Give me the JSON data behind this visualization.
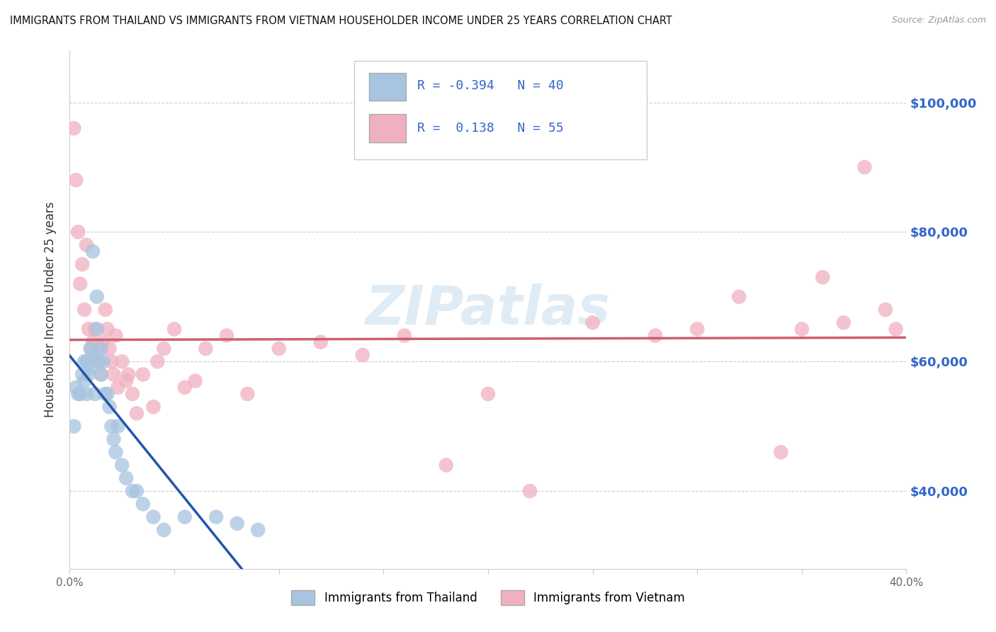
{
  "title": "IMMIGRANTS FROM THAILAND VS IMMIGRANTS FROM VIETNAM HOUSEHOLDER INCOME UNDER 25 YEARS CORRELATION CHART",
  "source": "Source: ZipAtlas.com",
  "ylabel": "Householder Income Under 25 years",
  "xlim": [
    0.0,
    0.4
  ],
  "ylim": [
    28000,
    108000
  ],
  "yticks": [
    40000,
    60000,
    80000,
    100000
  ],
  "ytick_labels": [
    "$40,000",
    "$60,000",
    "$80,000",
    "$100,000"
  ],
  "xticks": [
    0.0,
    0.05,
    0.1,
    0.15,
    0.2,
    0.25,
    0.3,
    0.35,
    0.4
  ],
  "xtick_labels": [
    "0.0%",
    "",
    "",
    "",
    "",
    "",
    "",
    "",
    "40.0%"
  ],
  "thailand_color": "#a8c4e0",
  "vietnam_color": "#f0b0c0",
  "thailand_line_color": "#2255aa",
  "vietnam_line_color": "#cc6070",
  "label_color": "#3366cc",
  "thailand_R": -0.394,
  "thailand_N": 40,
  "vietnam_R": 0.138,
  "vietnam_N": 55,
  "watermark": "ZIPatlas",
  "thailand_x": [
    0.002,
    0.003,
    0.004,
    0.005,
    0.006,
    0.007,
    0.007,
    0.008,
    0.008,
    0.009,
    0.009,
    0.01,
    0.01,
    0.011,
    0.011,
    0.012,
    0.013,
    0.013,
    0.014,
    0.015,
    0.015,
    0.016,
    0.017,
    0.018,
    0.019,
    0.02,
    0.021,
    0.022,
    0.023,
    0.025,
    0.027,
    0.03,
    0.032,
    0.035,
    0.04,
    0.045,
    0.055,
    0.07,
    0.08,
    0.09
  ],
  "thailand_y": [
    50000,
    56000,
    55000,
    55000,
    58000,
    60000,
    57000,
    60000,
    55000,
    60000,
    58000,
    62000,
    59000,
    61000,
    77000,
    55000,
    70000,
    65000,
    60000,
    62000,
    58000,
    60000,
    55000,
    55000,
    53000,
    50000,
    48000,
    46000,
    50000,
    44000,
    42000,
    40000,
    40000,
    38000,
    36000,
    34000,
    36000,
    36000,
    35000,
    34000
  ],
  "vietnam_x": [
    0.002,
    0.003,
    0.004,
    0.005,
    0.006,
    0.007,
    0.008,
    0.009,
    0.01,
    0.011,
    0.012,
    0.013,
    0.014,
    0.015,
    0.016,
    0.017,
    0.018,
    0.019,
    0.02,
    0.021,
    0.022,
    0.023,
    0.025,
    0.027,
    0.028,
    0.03,
    0.032,
    0.035,
    0.04,
    0.042,
    0.045,
    0.05,
    0.055,
    0.06,
    0.065,
    0.075,
    0.085,
    0.1,
    0.12,
    0.14,
    0.16,
    0.18,
    0.2,
    0.22,
    0.25,
    0.28,
    0.3,
    0.32,
    0.34,
    0.35,
    0.36,
    0.37,
    0.38,
    0.39,
    0.395
  ],
  "vietnam_y": [
    96000,
    88000,
    80000,
    72000,
    75000,
    68000,
    78000,
    65000,
    62000,
    63000,
    65000,
    60000,
    62000,
    58000,
    63000,
    68000,
    65000,
    62000,
    60000,
    58000,
    64000,
    56000,
    60000,
    57000,
    58000,
    55000,
    52000,
    58000,
    53000,
    60000,
    62000,
    65000,
    56000,
    57000,
    62000,
    64000,
    55000,
    62000,
    63000,
    61000,
    64000,
    44000,
    55000,
    40000,
    66000,
    64000,
    65000,
    70000,
    46000,
    65000,
    73000,
    66000,
    90000,
    68000,
    65000
  ]
}
